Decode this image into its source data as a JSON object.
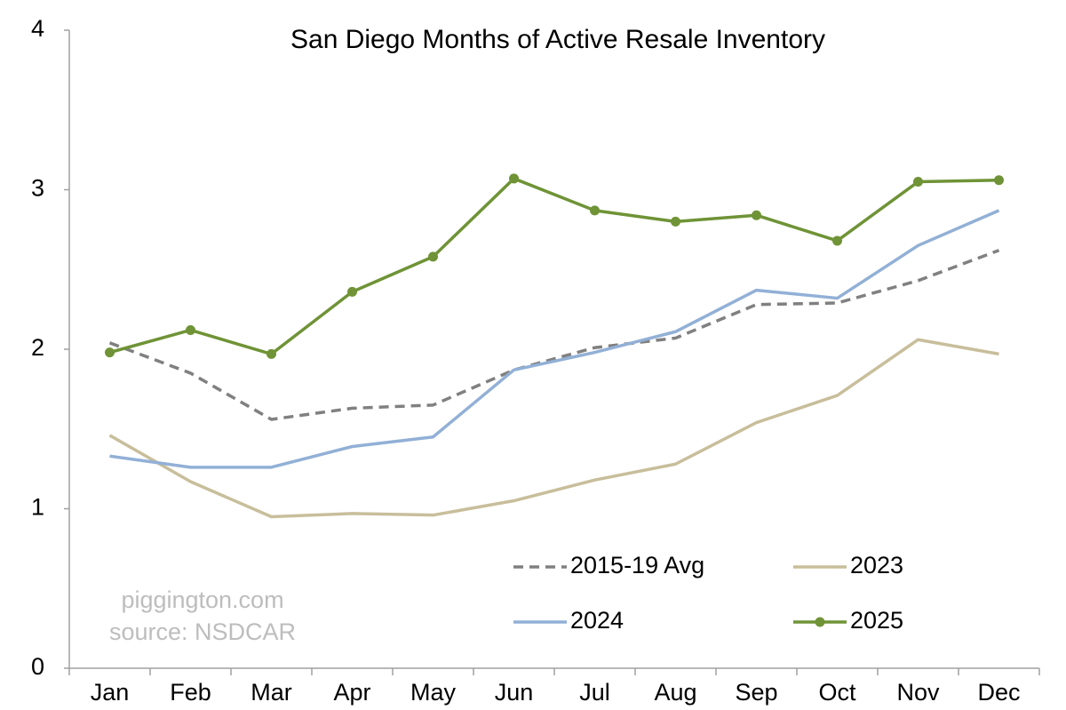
{
  "chart_data": {
    "type": "line",
    "title": "San Diego Months of Active Resale Inventory",
    "annotations": [
      "piggington.com",
      "source: NSDCAR"
    ],
    "categories": [
      "Jan",
      "Feb",
      "Mar",
      "Apr",
      "May",
      "Jun",
      "Jul",
      "Aug",
      "Sep",
      "Oct",
      "Nov",
      "Dec"
    ],
    "series": [
      {
        "name": "2015-19 Avg",
        "color": "#808080",
        "dashed": true,
        "markers": false,
        "values": [
          2.04,
          1.85,
          1.56,
          1.63,
          1.65,
          1.87,
          2.01,
          2.07,
          2.28,
          2.29,
          2.43,
          2.62
        ]
      },
      {
        "name": "2023",
        "color": "#c8be9b",
        "dashed": false,
        "markers": false,
        "values": [
          1.46,
          1.17,
          0.95,
          0.97,
          0.96,
          1.05,
          1.18,
          1.28,
          1.54,
          1.71,
          2.06,
          1.97
        ]
      },
      {
        "name": "2024",
        "color": "#92b0d6",
        "dashed": false,
        "markers": false,
        "values": [
          1.33,
          1.26,
          1.26,
          1.39,
          1.45,
          1.87,
          1.98,
          2.11,
          2.37,
          2.32,
          2.65,
          2.87
        ]
      },
      {
        "name": "2025",
        "color": "#6f9336",
        "dashed": false,
        "markers": true,
        "values": [
          1.98,
          2.12,
          1.97,
          2.36,
          2.58,
          3.07,
          2.87,
          2.8,
          2.84,
          2.68,
          3.05,
          3.06
        ]
      }
    ],
    "ylim": [
      0,
      4
    ],
    "yticks": [
      0,
      1,
      2,
      3,
      4
    ],
    "grid": false
  }
}
